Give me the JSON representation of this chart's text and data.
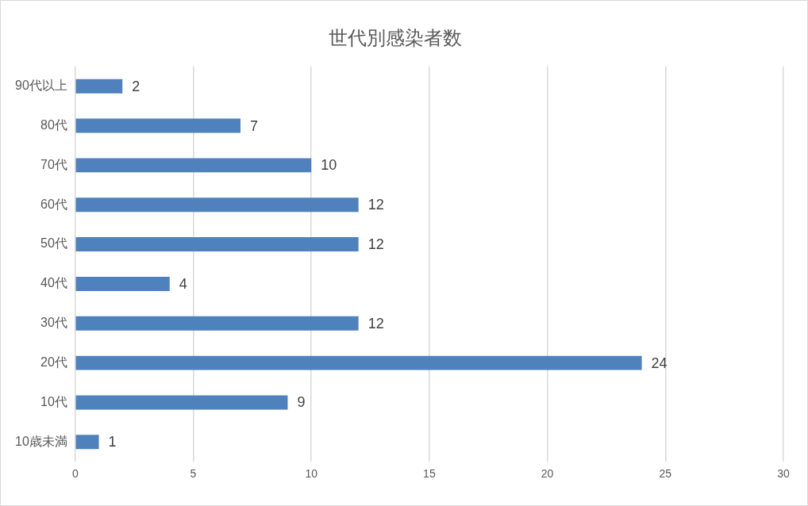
{
  "chart_data": {
    "type": "bar",
    "orientation": "horizontal",
    "title": "世代別感染者数",
    "categories": [
      "90代以上",
      "80代",
      "70代",
      "60代",
      "50代",
      "40代",
      "30代",
      "20代",
      "10代",
      "10歳未満"
    ],
    "values": [
      2,
      7,
      10,
      12,
      12,
      4,
      12,
      24,
      9,
      1
    ],
    "color": "#4f81bd",
    "xlim": [
      0,
      30
    ],
    "xticks": [
      0,
      5,
      10,
      15,
      20,
      25,
      30
    ],
    "grid": "x",
    "data_labels": true
  }
}
